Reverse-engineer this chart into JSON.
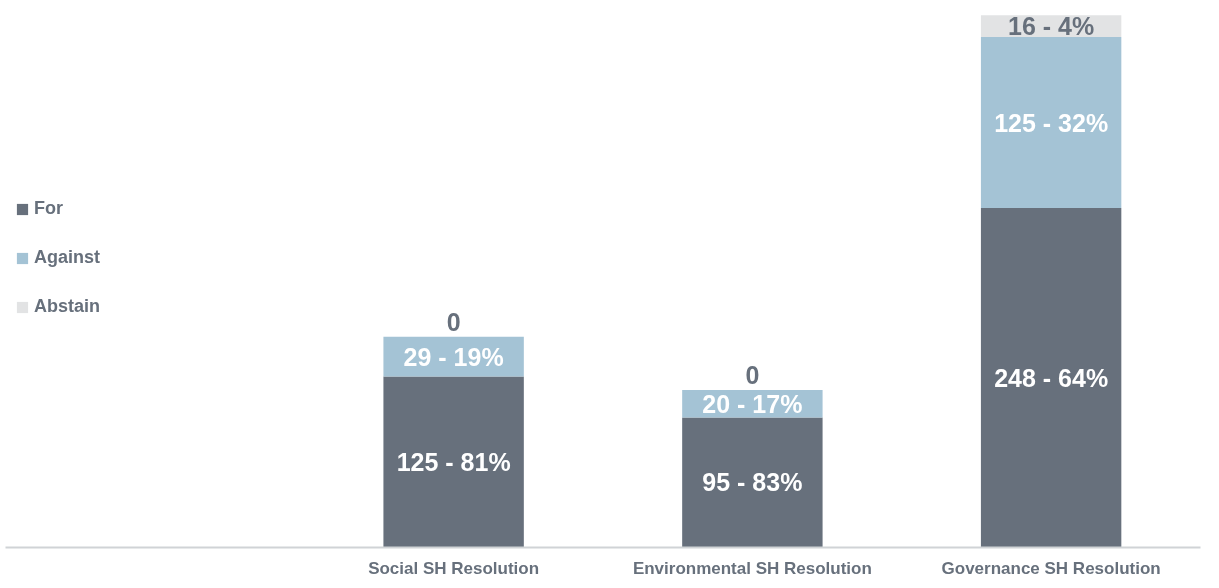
{
  "chart_data": {
    "type": "bar",
    "stacked": true,
    "categories": [
      "Social SH Resolution",
      "Environmental SH Resolution",
      "Governance SH Resolution"
    ],
    "series": [
      {
        "name": "For",
        "color": "#67707c",
        "values": [
          125,
          95,
          248
        ],
        "value_labels": [
          "125 - 81%",
          "95 - 83%",
          "248 - 64%"
        ]
      },
      {
        "name": "Against",
        "color": "#a4c3d5",
        "values": [
          29,
          20,
          125
        ],
        "value_labels": [
          "29 - 19%",
          "20 - 17%",
          "125 - 32%"
        ]
      },
      {
        "name": "Abstain",
        "color": "#e2e3e4",
        "values": [
          0,
          0,
          16
        ],
        "value_labels": [
          "0",
          "0",
          "16 - 4%"
        ]
      }
    ],
    "legend": "left",
    "grid": false
  }
}
